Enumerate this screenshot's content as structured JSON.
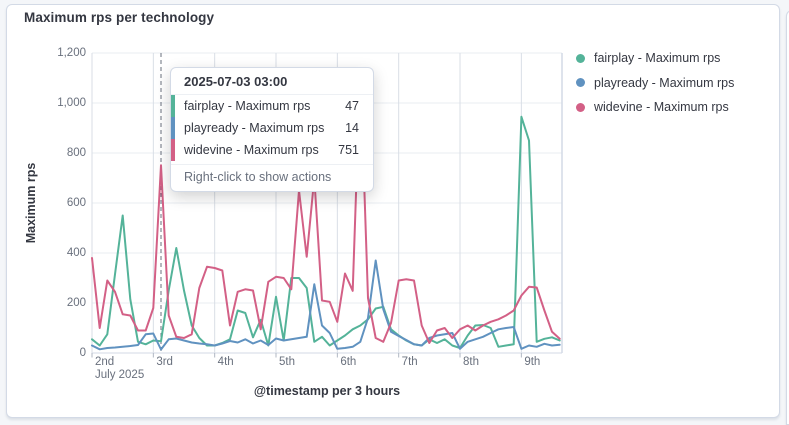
{
  "panel": {
    "title": "Maximum rps per technology"
  },
  "chart_data": {
    "type": "line",
    "title": "Maximum rps per technology",
    "xlabel": "@timestamp per 3 hours",
    "ylabel": "Maximum rps",
    "ylim": [
      0,
      1200
    ],
    "yticks": [
      {
        "value": 0,
        "label": "0"
      },
      {
        "value": 200,
        "label": "200"
      },
      {
        "value": 400,
        "label": "400"
      },
      {
        "value": 600,
        "label": "600"
      },
      {
        "value": 800,
        "label": "800"
      },
      {
        "value": 1000,
        "label": "1,000"
      },
      {
        "value": 1200,
        "label": "1,200"
      }
    ],
    "x_start": "2025-07-02 00:00",
    "x_step_hours": 3,
    "x_ticks": [
      {
        "step": 0,
        "label": "2nd",
        "sublabel": "July 2025"
      },
      {
        "step": 8,
        "label": "3rd"
      },
      {
        "step": 16,
        "label": "4th"
      },
      {
        "step": 24,
        "label": "5th"
      },
      {
        "step": 32,
        "label": "6th"
      },
      {
        "step": 40,
        "label": "7th"
      },
      {
        "step": 48,
        "label": "8th"
      },
      {
        "step": 56,
        "label": "9th"
      }
    ],
    "grid": true,
    "legend_position": "right",
    "highlight_step": 9,
    "series": [
      {
        "id": "fairplay",
        "name": "fairplay - Maximum rps",
        "color": "#54b399",
        "values": [
          55,
          30,
          75,
          315,
          550,
          215,
          45,
          35,
          50,
          47,
          250,
          420,
          250,
          110,
          60,
          30,
          30,
          40,
          55,
          170,
          160,
          63,
          133,
          30,
          225,
          50,
          300,
          300,
          260,
          45,
          65,
          30,
          50,
          70,
          95,
          110,
          135,
          178,
          185,
          95,
          70,
          50,
          35,
          30,
          55,
          40,
          55,
          30,
          20,
          70,
          110,
          112,
          100,
          25,
          30,
          35,
          945,
          850,
          45,
          57,
          63,
          50
        ]
      },
      {
        "id": "playready",
        "name": "playready - Maximum rps",
        "color": "#6092c0",
        "values": [
          30,
          15,
          20,
          22,
          25,
          28,
          32,
          75,
          78,
          14,
          55,
          58,
          50,
          42,
          38,
          35,
          30,
          38,
          48,
          42,
          55,
          38,
          50,
          32,
          58,
          50,
          55,
          60,
          65,
          275,
          110,
          80,
          17,
          20,
          25,
          45,
          140,
          370,
          175,
          85,
          68,
          52,
          35,
          30,
          60,
          70,
          75,
          80,
          17,
          45,
          55,
          65,
          80,
          95,
          100,
          104,
          17,
          30,
          25,
          37,
          30,
          33
        ]
      },
      {
        "id": "widevine",
        "name": "widevine - Maximum rps",
        "color": "#d36086",
        "values": [
          380,
          100,
          290,
          245,
          155,
          150,
          90,
          90,
          180,
          751,
          150,
          65,
          60,
          75,
          260,
          345,
          340,
          330,
          110,
          245,
          255,
          250,
          95,
          285,
          305,
          300,
          255,
          650,
          385,
          700,
          210,
          205,
          125,
          318,
          249,
          1140,
          220,
          60,
          45,
          120,
          290,
          295,
          290,
          110,
          40,
          90,
          100,
          60,
          95,
          110,
          90,
          110,
          125,
          135,
          150,
          170,
          230,
          265,
          262,
          170,
          85,
          57
        ]
      }
    ]
  },
  "tooltip": {
    "title": "2025-07-03 03:00",
    "rows": [
      {
        "series": "fairplay",
        "label": "fairplay - Maximum rps",
        "value": "47"
      },
      {
        "series": "playready",
        "label": "playready - Maximum rps",
        "value": "14"
      },
      {
        "series": "widevine",
        "label": "widevine - Maximum rps",
        "value": "751"
      }
    ],
    "footer": "Right-click to show actions"
  },
  "colors": {
    "grid_horizontal": "#e9edf2",
    "grid_vertical": "#d9dee6",
    "axis_line": "#d3dae6",
    "tick_mark": "#b0b7c3",
    "crosshair": "#69707d",
    "text_primary": "#343741",
    "text_muted": "#69707d"
  }
}
